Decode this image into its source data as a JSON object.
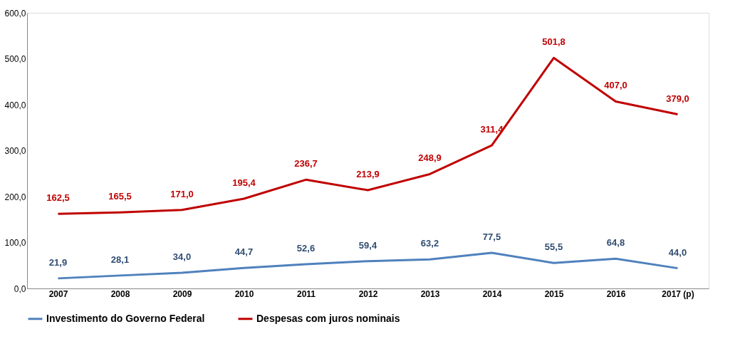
{
  "chart_data": {
    "type": "line",
    "categories": [
      "2007",
      "2008",
      "2009",
      "2010",
      "2011",
      "2012",
      "2013",
      "2014",
      "2015",
      "2016",
      "2017 (p)"
    ],
    "series": [
      {
        "name": "Investimento do Governo Federal",
        "color": "#4f81bd",
        "values": [
          21.9,
          28.1,
          34.0,
          44.7,
          52.6,
          59.4,
          63.2,
          77.5,
          55.5,
          64.8,
          44.0
        ],
        "value_labels": [
          "21,9",
          "28,1",
          "34,0",
          "44,7",
          "52,6",
          "59,4",
          "63,2",
          "77,5",
          "55,5",
          "64,8",
          "44,0"
        ]
      },
      {
        "name": "Despesas com juros nominais",
        "color": "#c00000",
        "values": [
          162.5,
          165.5,
          171.0,
          195.4,
          236.7,
          213.9,
          248.9,
          311.4,
          501.8,
          407.0,
          379.0
        ],
        "value_labels": [
          "162,5",
          "165,5",
          "171,0",
          "195,4",
          "236,7",
          "213,9",
          "248,9",
          "311,4",
          "501,8",
          "407,0",
          "379,0"
        ]
      }
    ],
    "ylim": [
      0,
      600
    ],
    "yticks": [
      {
        "value": 0,
        "label": "0,0"
      },
      {
        "value": 100,
        "label": "100,0"
      },
      {
        "value": 200,
        "label": "200,0"
      },
      {
        "value": 300,
        "label": "300,0"
      },
      {
        "value": 400,
        "label": "400,0"
      },
      {
        "value": 500,
        "label": "500,0"
      },
      {
        "value": 600,
        "label": "600,0"
      }
    ],
    "grid": false,
    "legend": "bottom",
    "marker": "none",
    "line_style": "solid"
  }
}
